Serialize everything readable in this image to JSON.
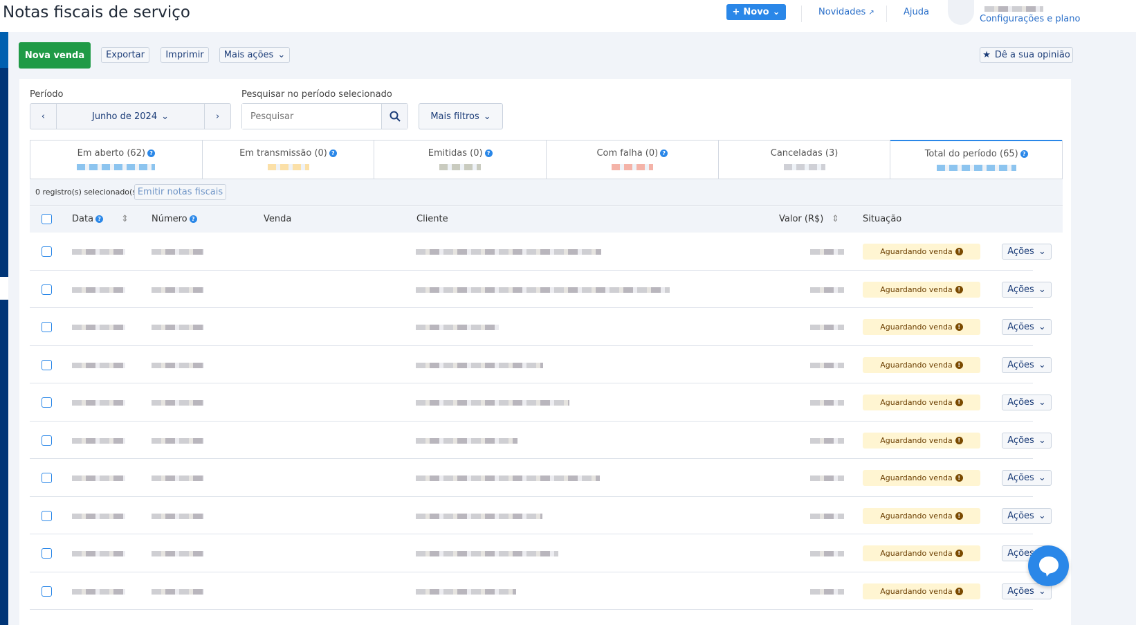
{
  "header": {
    "title": "Notas fiscais de serviço",
    "novo_label": "Novo",
    "novidades_label": "Novidades",
    "ajuda_label": "Ajuda",
    "config_label": "Configurações e plano"
  },
  "toolbar": {
    "nova_venda": "Nova venda",
    "exportar": "Exportar",
    "imprimir": "Imprimir",
    "mais_acoes": "Mais ações",
    "opiniao": "Dê a sua opinião"
  },
  "filters": {
    "periodo_label": "Período",
    "periodo_value": "Junho de 2024",
    "search_label": "Pesquisar no período selecionado",
    "search_placeholder": "Pesquisar",
    "mais_filtros": "Mais filtros"
  },
  "tabs": [
    {
      "label": "Em aberto (62)",
      "help": true,
      "color": "#8cc4ef"
    },
    {
      "label": "Em transmissão (0)",
      "help": true,
      "color": "#fbe0a8"
    },
    {
      "label": "Emitidas (0)",
      "help": true,
      "color": "#c9cbbf"
    },
    {
      "label": "Com falha (0)",
      "help": true,
      "color": "#f4b3a8"
    },
    {
      "label": "Canceladas (3)",
      "help": false,
      "color": "#cfd0d6"
    },
    {
      "label": "Total do período (65)",
      "help": true,
      "color": "#8cc4ef",
      "active": true
    }
  ],
  "selection": {
    "count_text": "0 registro(s) selecionado(s)",
    "emitir_label": "Emitir notas fiscais"
  },
  "table": {
    "columns": [
      "Data",
      "Número",
      "Venda",
      "Cliente",
      "Valor (R$)",
      "Situação"
    ],
    "rows": [
      {
        "situacao": "Aguardando venda",
        "acoes": "Ações"
      },
      {
        "situacao": "Aguardando venda",
        "acoes": "Ações"
      },
      {
        "situacao": "Aguardando venda",
        "acoes": "Ações"
      },
      {
        "situacao": "Aguardando venda",
        "acoes": "Ações"
      },
      {
        "situacao": "Aguardando venda",
        "acoes": "Ações"
      },
      {
        "situacao": "Aguardando venda",
        "acoes": "Ações"
      },
      {
        "situacao": "Aguardando venda",
        "acoes": "Ações"
      },
      {
        "situacao": "Aguardando venda",
        "acoes": "Ações"
      },
      {
        "situacao": "Aguardando venda",
        "acoes": "Ações"
      },
      {
        "situacao": "Aguardando venda",
        "acoes": "Ações"
      }
    ]
  },
  "colors": {
    "primary": "#2a87e8",
    "success": "#1f9a46",
    "sidebar": "#003577",
    "badge_bg": "#fff5d2"
  }
}
